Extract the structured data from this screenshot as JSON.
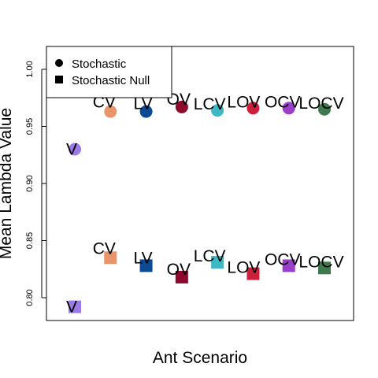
{
  "chart_data": {
    "type": "scatter",
    "title": "",
    "xlabel": "Ant Scenario",
    "ylabel": "Mean Lambda Value",
    "ylim": [
      0.78,
      1.02
    ],
    "yticks": [
      "0.80",
      "0.85",
      "0.90",
      "0.95",
      "1.00"
    ],
    "categories": [
      "V",
      "CV",
      "LV",
      "OV",
      "LCV",
      "LOV",
      "OCV",
      "LOCV"
    ],
    "colors": [
      "#9b7be8",
      "#e8956b",
      "#0d4a94",
      "#8b0a2e",
      "#3db8c4",
      "#cc1f3a",
      "#9b3ec8",
      "#3e7a4e"
    ],
    "legend": {
      "position": "top-left",
      "entries": [
        "Stochastic",
        "Stochastic Null"
      ]
    },
    "series": [
      {
        "name": "Stochastic",
        "marker": "circle",
        "values": [
          0.93,
          0.963,
          0.963,
          0.967,
          0.964,
          0.966,
          0.966,
          0.965
        ]
      },
      {
        "name": "Stochastic Null",
        "marker": "square",
        "values": [
          0.792,
          0.835,
          0.828,
          0.818,
          0.831,
          0.821,
          0.828,
          0.826
        ]
      }
    ]
  }
}
